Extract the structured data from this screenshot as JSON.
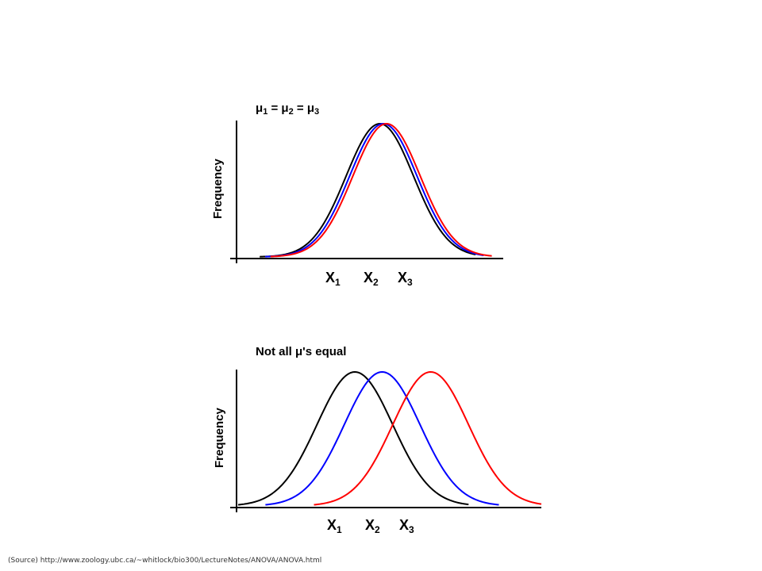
{
  "panels": [
    {
      "title": "μ1 = μ2 = μ3",
      "title_parts": [
        {
          "base": "μ",
          "sub": "1"
        },
        {
          "base": " = μ",
          "sub": "2"
        },
        {
          "base": " = μ",
          "sub": "3"
        }
      ],
      "ylabel": "Frequency",
      "xticks": [
        {
          "base": "X",
          "sub": "1"
        },
        {
          "base": "X",
          "sub": "2"
        },
        {
          "base": "X",
          "sub": "3"
        }
      ]
    },
    {
      "title": "Not all μ's equal",
      "ylabel": "Frequency",
      "xticks": [
        {
          "base": "X",
          "sub": "1"
        },
        {
          "base": "X",
          "sub": "2"
        },
        {
          "base": "X",
          "sub": "3"
        }
      ]
    }
  ],
  "chart_data": [
    {
      "type": "line",
      "title": "μ1 = μ2 = μ3",
      "ylabel": "Frequency",
      "xlabel": "",
      "x_ticklabels": [
        "X1",
        "X2",
        "X3"
      ],
      "xlim": [
        0,
        100
      ],
      "ylim": [
        0,
        1
      ],
      "grid": false,
      "series": [
        {
          "color": "#000000",
          "shape": "normal",
          "mean": 52.5,
          "sd": 12.5,
          "x_start": 8,
          "x_end": 88
        },
        {
          "color": "#0000ff",
          "shape": "normal",
          "mean": 53.8,
          "sd": 12.5,
          "x_start": 10,
          "x_end": 91
        },
        {
          "color": "#ff0000",
          "shape": "normal",
          "mean": 55.0,
          "sd": 12.5,
          "x_start": 12,
          "x_end": 94
        }
      ]
    },
    {
      "type": "line",
      "title": "Not all μ's equal",
      "ylabel": "Frequency",
      "xlabel": "",
      "x_ticklabels": [
        "X1",
        "X2",
        "X3"
      ],
      "xlim": [
        0,
        100
      ],
      "ylim": [
        0,
        1
      ],
      "grid": false,
      "series": [
        {
          "color": "#000000",
          "shape": "normal",
          "mean": 38.5,
          "sd": 12.5,
          "x_start": 0,
          "x_end": 76
        },
        {
          "color": "#0000ff",
          "shape": "normal",
          "mean": 47.5,
          "sd": 12.5,
          "x_start": 9,
          "x_end": 86
        },
        {
          "color": "#ff0000",
          "shape": "normal",
          "mean": 63.5,
          "sd": 12.5,
          "x_start": 25,
          "x_end": 100
        }
      ]
    }
  ],
  "source": "(Source) http://www.zoology.ubc.ca/~whitlock/bio300/LectureNotes/ANOVA/ANOVA.html"
}
